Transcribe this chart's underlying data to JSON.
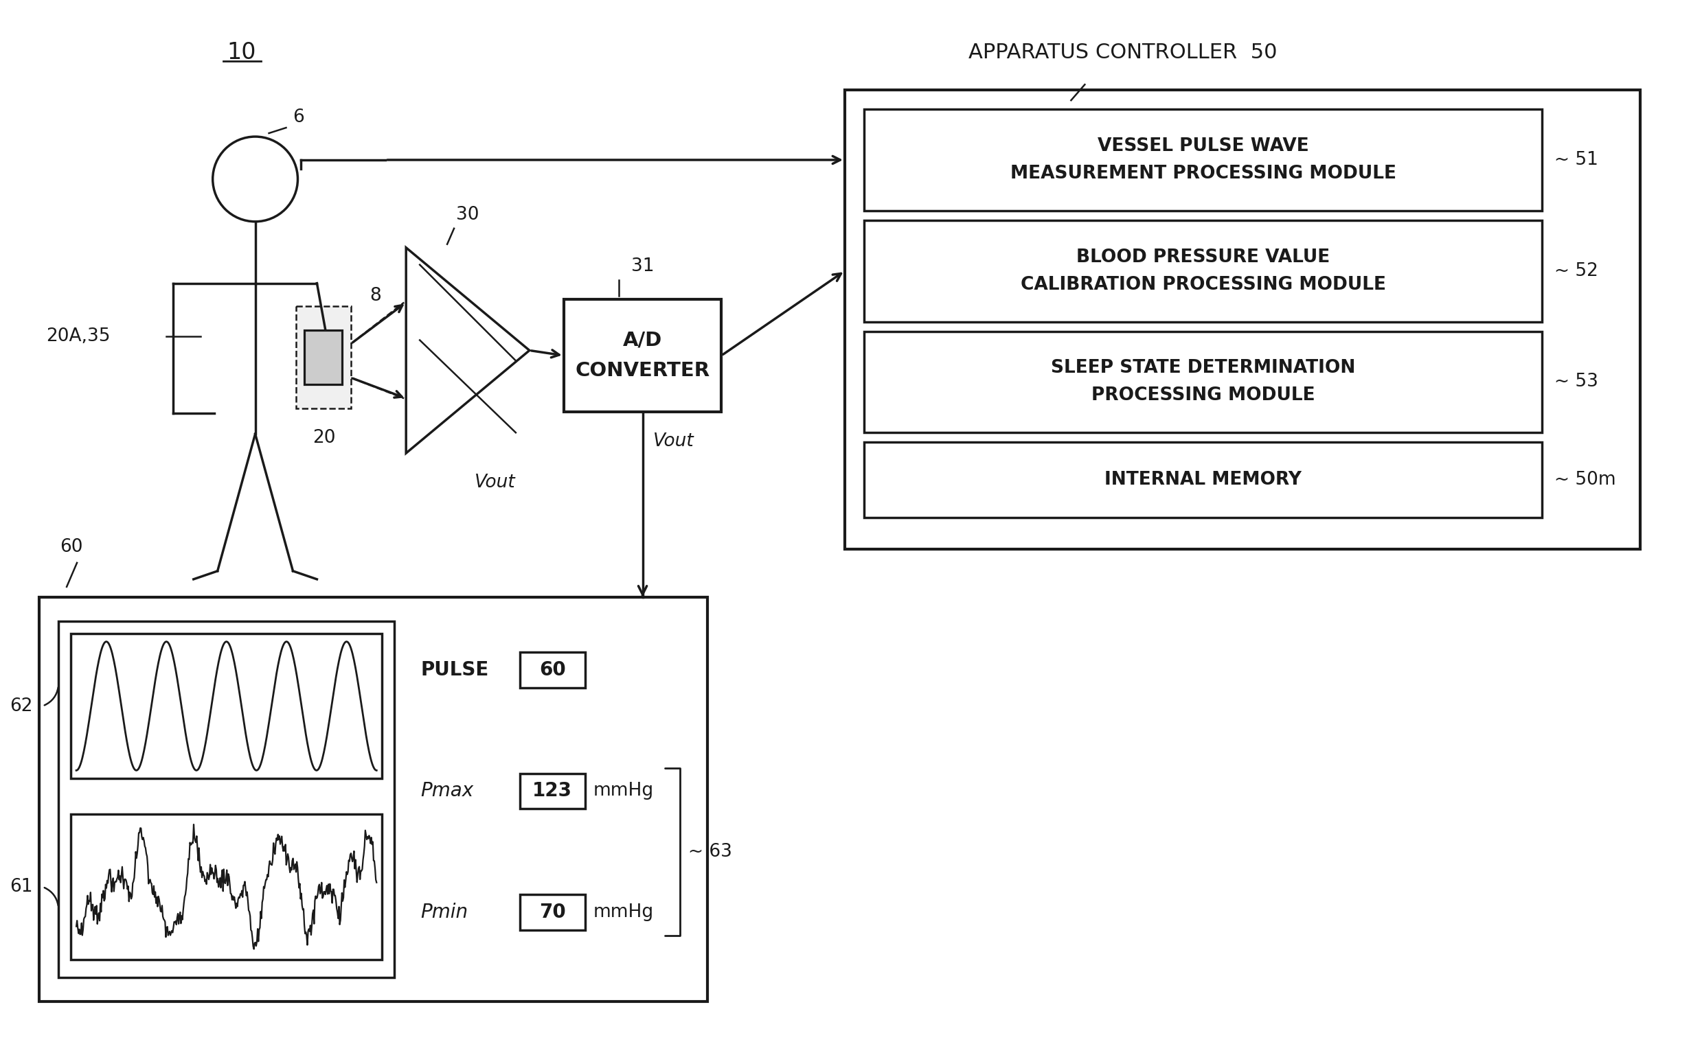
{
  "bg": "#ffffff",
  "lc": "#1a1a1a",
  "lw": 2.5,
  "lw_thick": 3.0,
  "lw_thin": 1.8,
  "fs_big": 22,
  "fs_med": 19,
  "fs_sm": 17,
  "label_10": "10",
  "label_6": "6",
  "label_8": "8",
  "label_20": "20",
  "label_20A35": "20A,35",
  "label_30": "30",
  "label_31": "31",
  "label_vout": "Vout",
  "label_60": "60",
  "label_61": "61",
  "label_62": "62",
  "label_63": "63",
  "label_50m": "50m",
  "label_51": "51",
  "label_52": "52",
  "label_53": "53",
  "label_apparatus": "APPARATUS CONTROLLER  50",
  "mod1a": "VESSEL PULSE WAVE",
  "mod1b": "MEASUREMENT PROCESSING MODULE",
  "mod2a": "BLOOD PRESSURE VALUE",
  "mod2b": "CALIBRATION PROCESSING MODULE",
  "mod3a": "SLEEP STATE DETERMINATION",
  "mod3b": "PROCESSING MODULE",
  "mod4": "INTERNAL MEMORY",
  "label_ad1": "A/D",
  "label_ad2": "CONVERTER",
  "label_pulse": "PULSE",
  "label_pulse_val": "60",
  "label_pmax": "Pmax",
  "label_pmax_val": "123",
  "label_mmhg1": "mmHg",
  "label_pmin": "Pmin",
  "label_pmin_val": "70",
  "label_mmhg2": "mmHg"
}
